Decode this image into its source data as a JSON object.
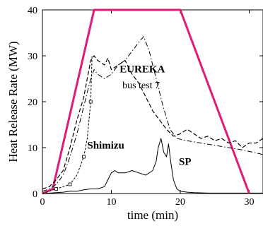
{
  "chart_data": {
    "type": "line",
    "xlabel": "time (min)",
    "ylabel": "Heat Release Rate (MW)",
    "xlim": [
      0,
      32
    ],
    "ylim": [
      0,
      40
    ],
    "xticks": [
      0,
      10,
      20,
      30
    ],
    "yticks": [
      0,
      10,
      20,
      30,
      40
    ],
    "grid": false,
    "annotations": [
      {
        "text": "EUREKA",
        "x": 11.2,
        "y": 26.4,
        "style": "bold"
      },
      {
        "text": "bus test 7",
        "x": 11.6,
        "y": 22.9,
        "style": "normal"
      },
      {
        "text": "Shimizu",
        "x": 6.5,
        "y": 9.8,
        "style": "bold"
      },
      {
        "text": "SP",
        "x": 19.8,
        "y": 6.2,
        "style": "bold"
      }
    ],
    "series": [
      {
        "color": "#e0197a",
        "style": "solid-thick",
        "x": [
          0,
          1.5,
          7.5,
          20,
          30
        ],
        "y": [
          0,
          1,
          40,
          40,
          0
        ]
      },
      {
        "color": "#000000",
        "style": "dash-dot",
        "x": [
          0,
          1,
          2,
          3,
          4,
          5,
          6,
          7,
          7.5,
          8,
          9,
          10,
          11,
          12,
          13,
          14,
          14.7,
          15.5,
          16.5,
          17.5,
          18.5,
          19.5,
          21,
          23,
          25,
          27,
          29,
          30.5,
          32
        ],
        "y": [
          0.5,
          1,
          2,
          4,
          8,
          13,
          19,
          25,
          27,
          26,
          25,
          26,
          28,
          29,
          31,
          33,
          34.2,
          31,
          25,
          19,
          14,
          12,
          11.5,
          11,
          10.5,
          10,
          9.5,
          9,
          8.5
        ]
      },
      {
        "color": "#000000",
        "style": "dashed",
        "x": [
          0,
          1,
          2,
          3,
          4,
          5,
          6,
          6.5,
          7,
          7.5,
          8,
          9,
          9.5,
          10,
          11,
          12,
          13,
          14,
          15,
          16,
          17,
          18,
          19,
          20,
          21,
          22,
          23,
          24,
          25,
          26,
          27,
          28,
          29,
          30,
          31,
          32
        ],
        "y": [
          1,
          1.5,
          3,
          5,
          10,
          16,
          21,
          25,
          29,
          30,
          29,
          28,
          29.5,
          27,
          28,
          29,
          26,
          24,
          21,
          18,
          16,
          14,
          12.5,
          13,
          14,
          13,
          12,
          12.5,
          11.5,
          12,
          11,
          11.5,
          10,
          11,
          11,
          12
        ]
      },
      {
        "color": "#000000",
        "style": "dashed-square",
        "x": [
          0,
          1,
          2,
          3,
          4,
          5,
          6,
          6.5,
          7,
          7.2
        ],
        "y": [
          0,
          0.5,
          1,
          1.5,
          2,
          4,
          8,
          12,
          20,
          30
        ]
      },
      {
        "color": "#000000",
        "style": "solid-thin",
        "x": [
          0,
          3,
          4,
          5,
          6,
          7,
          8,
          9,
          9.5,
          10,
          10.5,
          11,
          12,
          13,
          14,
          15,
          16,
          16.5,
          16.8,
          17.2,
          17.6,
          18,
          18.3,
          18.6,
          19,
          19.5,
          20,
          21,
          22,
          24,
          26,
          28,
          30,
          32
        ],
        "y": [
          0,
          0.3,
          0.5,
          0.5,
          0.8,
          1,
          1,
          1.5,
          3,
          4.5,
          5,
          4.5,
          4.5,
          5,
          4.5,
          4,
          5,
          7,
          10,
          12,
          9,
          8,
          10.8,
          7,
          3,
          1,
          0.5,
          0.3,
          0.2,
          0.1,
          0.1,
          0.1,
          0.1,
          0.1
        ]
      }
    ]
  }
}
